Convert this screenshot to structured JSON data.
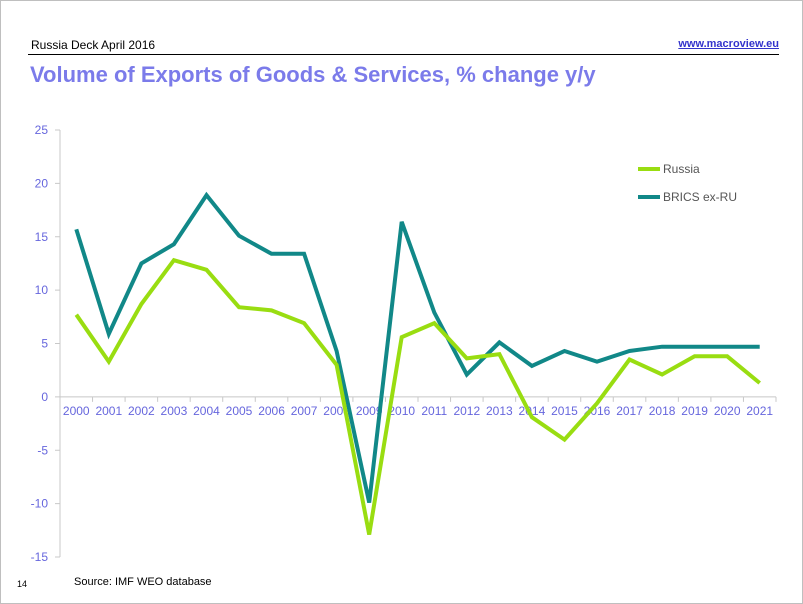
{
  "header": {
    "deck_title": "Russia Deck April 2016",
    "website": "www.macroview.eu"
  },
  "slide": {
    "title": "Volume of Exports of Goods & Services, % change y/y",
    "page_number": "14",
    "source": "Source: IMF WEO database"
  },
  "colors": {
    "title": "#7b7bea",
    "axis_label": "#6666dd",
    "russia": "#99dd11",
    "brics": "#118888",
    "axis": "#c8c8c8"
  },
  "chart_data": {
    "type": "line",
    "title": "Volume of Exports of Goods & Services, % change y/y",
    "xlabel": "",
    "ylabel": "",
    "ylim": [
      -15,
      25
    ],
    "yticks": [
      -15,
      -10,
      -5,
      0,
      5,
      10,
      15,
      20,
      25
    ],
    "grid": false,
    "legend_position": "top-right",
    "categories": [
      "2000",
      "2001",
      "2002",
      "2003",
      "2004",
      "2005",
      "2006",
      "2007",
      "2008",
      "2009",
      "2010",
      "2011",
      "2012",
      "2013",
      "2014",
      "2015",
      "2016",
      "2017",
      "2018",
      "2019",
      "2020",
      "2021"
    ],
    "series": [
      {
        "name": "Russia",
        "color": "#99dd11",
        "values": [
          7.7,
          3.3,
          8.7,
          12.8,
          11.9,
          8.4,
          8.1,
          6.9,
          3.0,
          -12.9,
          5.6,
          6.9,
          3.6,
          4.0,
          -1.9,
          -4.0,
          -0.6,
          3.5,
          2.1,
          3.8,
          3.8,
          1.3
        ]
      },
      {
        "name": "BRICS ex-RU",
        "color": "#118888",
        "values": [
          15.7,
          5.9,
          12.5,
          14.3,
          18.9,
          15.1,
          13.4,
          13.4,
          4.3,
          -9.9,
          16.4,
          7.9,
          2.1,
          5.1,
          2.9,
          4.3,
          3.3,
          4.3,
          4.7,
          4.7,
          4.7,
          4.7
        ]
      }
    ]
  }
}
